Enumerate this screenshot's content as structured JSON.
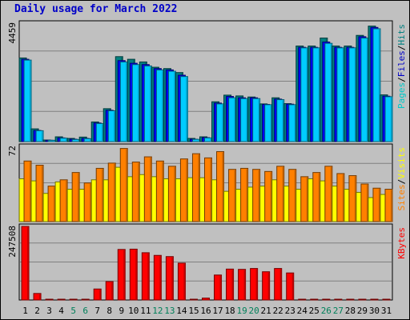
{
  "chart_data": {
    "type": "bar",
    "title": "Daily usage for March 2022",
    "categories": [
      "1",
      "2",
      "3",
      "4",
      "5",
      "6",
      "7",
      "8",
      "9",
      "10",
      "11",
      "12",
      "13",
      "14",
      "15",
      "16",
      "17",
      "18",
      "19",
      "20",
      "21",
      "22",
      "23",
      "24",
      "25",
      "26",
      "27",
      "28",
      "29",
      "30",
      "31"
    ],
    "weekend_days": [
      "5",
      "6",
      "12",
      "13",
      "19",
      "20",
      "26",
      "27"
    ],
    "panels": [
      {
        "name": "top",
        "max_label": "4459",
        "ymax": 4459,
        "labels": [
          "Pages",
          "/",
          "Files",
          "/",
          "Hits"
        ],
        "label_colors": [
          "#00c8c8",
          "#000000",
          "#0000c8",
          "#000000",
          "#008080"
        ],
        "series": [
          {
            "name": "Hits",
            "color": "#008080",
            "values": [
              3150,
              480,
              60,
              180,
              120,
              170,
              740,
              1240,
              3200,
              3100,
              3000,
              2800,
              2750,
              2600,
              120,
              180,
              1500,
              1750,
              1720,
              1680,
              1420,
              1650,
              1430,
              3600,
              3600,
              3900,
              3600,
              3600,
              4000,
              4350,
              1760
            ]
          },
          {
            "name": "Files",
            "color": "#0000ff",
            "values": [
              3100,
              420,
              50,
              140,
              90,
              120,
              700,
              1180,
              3050,
              2950,
              2900,
              2750,
              2700,
              2500,
              90,
              150,
              1450,
              1700,
              1650,
              1650,
              1400,
              1600,
              1410,
              3550,
              3550,
              3750,
              3550,
              3550,
              3950,
              4300,
              1710
            ]
          },
          {
            "name": "Pages",
            "color": "#00ccff",
            "values": [
              3070,
              410,
              50,
              130,
              80,
              110,
              680,
              1160,
              3000,
              2900,
              2850,
              2700,
              2650,
              2450,
              85,
              140,
              1420,
              1650,
              1620,
              1620,
              1390,
              1580,
              1390,
              3530,
              3530,
              3700,
              3530,
              3530,
              3900,
              4250,
              1690
            ]
          }
        ]
      },
      {
        "name": "middle",
        "max_label": "72",
        "ymax": 72,
        "labels": [
          "Sites",
          "/",
          "Visits"
        ],
        "label_colors": [
          "#ff8000",
          "#000000",
          "#ffff00"
        ],
        "series": [
          {
            "name": "Visits",
            "color": "#ffff00",
            "values": [
              41,
              39,
              27,
              38,
              31,
              31,
              40,
              40,
              52,
              43,
              45,
              43,
              41,
              41,
              42,
              42,
              40,
              29,
              31,
              33,
              34,
              40,
              34,
              31,
              41,
              39,
              34,
              31,
              28,
              23,
              26
            ]
          },
          {
            "name": "Sites",
            "color": "#ff8000",
            "values": [
              58,
              54,
              34,
              40,
              47,
              37,
              51,
              56,
              70,
              57,
              62,
              58,
              53,
              60,
              65,
              61,
              67,
              50,
              51,
              50,
              48,
              53,
              50,
              43,
              47,
              53,
              46,
              44,
              36,
              32,
              31
            ]
          }
        ]
      },
      {
        "name": "bottom",
        "max_label": "247508",
        "ymax": 247508,
        "labels": [
          "KBytes"
        ],
        "label_colors": [
          "#ff0000"
        ],
        "series": [
          {
            "name": "KBytes",
            "color": "#ff0000",
            "values": [
              247508,
              22000,
              500,
              900,
              500,
              500,
              37000,
              62000,
              170000,
              171000,
              159000,
              150000,
              146000,
              124000,
              500,
              6500,
              84000,
              104000,
              103000,
              106000,
              95000,
              106000,
              91000,
              500,
              500,
              500,
              500,
              500,
              500,
              500,
              500
            ]
          }
        ]
      }
    ]
  }
}
